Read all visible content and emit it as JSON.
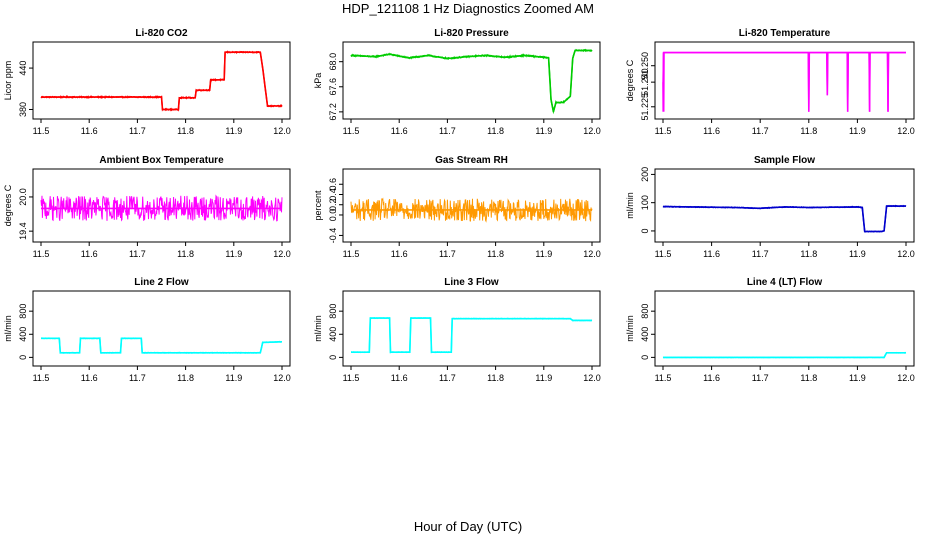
{
  "figure": {
    "title": "HDP_121108  1 Hz Diagnostics Zoomed AM",
    "xlabel": "Hour of Day (UTC)"
  },
  "chart_data": [
    {
      "type": "line",
      "title": "Li-820 CO2",
      "ylabel": "Licor ppm",
      "color": "#ff0000",
      "xlim": [
        11.5,
        12.0
      ],
      "ylim": [
        372,
        472
      ],
      "xticks": [
        "11.5",
        "11.6",
        "11.7",
        "11.8",
        "11.9",
        "12.0"
      ],
      "xtick_values": [
        11.5,
        11.6,
        11.7,
        11.8,
        11.9,
        12.0
      ],
      "yticks": [
        "380",
        "440"
      ],
      "ytick_values": [
        380,
        440
      ],
      "noise": 0.8,
      "x": [
        11.5,
        11.75,
        11.752,
        11.785,
        11.787,
        11.82,
        11.822,
        11.85,
        11.852,
        11.88,
        11.882,
        11.955,
        11.96,
        11.97,
        12.0
      ],
      "y": [
        398,
        398,
        380,
        380,
        397,
        397,
        408,
        408,
        423,
        423,
        463,
        463,
        440,
        385,
        385
      ]
    },
    {
      "type": "line",
      "title": "Li-820 Pressure",
      "ylabel": "kPa",
      "color": "#00cc00",
      "xlim": [
        11.5,
        12.0
      ],
      "ylim": [
        67.15,
        68.25
      ],
      "xticks": [
        "11.5",
        "11.6",
        "11.7",
        "11.8",
        "11.9",
        "12.0"
      ],
      "xtick_values": [
        11.5,
        11.6,
        11.7,
        11.8,
        11.9,
        12.0
      ],
      "yticks": [
        "67.2",
        "67.6",
        "68.0"
      ],
      "ytick_values": [
        67.2,
        67.6,
        68.0
      ],
      "noise": 0.01,
      "x": [
        11.5,
        11.55,
        11.58,
        11.62,
        11.66,
        11.7,
        11.74,
        11.78,
        11.82,
        11.86,
        11.9,
        11.91,
        11.915,
        11.92,
        11.925,
        11.94,
        11.945,
        11.955,
        11.96,
        11.965,
        12.0
      ],
      "y": [
        68.1,
        68.08,
        68.12,
        68.06,
        68.1,
        68.05,
        68.08,
        68.1,
        68.07,
        68.1,
        68.07,
        68.06,
        67.4,
        67.2,
        67.35,
        67.35,
        67.38,
        67.45,
        68.05,
        68.18,
        68.18
      ]
    },
    {
      "type": "line",
      "title": "Li-820 Temperature",
      "ylabel": "degrees C",
      "color": "#ff00ff",
      "xlim": [
        11.5,
        12.0
      ],
      "ylim": [
        51.22,
        51.262
      ],
      "xticks": [
        "11.5",
        "11.6",
        "11.7",
        "11.8",
        "11.9",
        "12.0"
      ],
      "xtick_values": [
        11.5,
        11.6,
        11.7,
        11.8,
        11.9,
        12.0
      ],
      "yticks": [
        "51.225",
        "51.240",
        "51.250"
      ],
      "ytick_values": [
        51.225,
        51.24,
        51.25
      ],
      "noise": 0,
      "x": [
        11.5,
        11.5005,
        11.501,
        11.5015,
        11.502,
        11.503,
        11.504,
        11.505,
        11.799,
        11.8,
        11.801,
        11.837,
        11.838,
        11.839,
        11.879,
        11.88,
        11.881,
        11.924,
        11.925,
        11.926,
        11.962,
        11.963,
        11.964,
        12.0
      ],
      "y": [
        51.24,
        51.222,
        51.258,
        51.222,
        51.258,
        51.258,
        51.258,
        51.258,
        51.258,
        51.222,
        51.258,
        51.258,
        51.232,
        51.258,
        51.258,
        51.222,
        51.258,
        51.258,
        51.222,
        51.258,
        51.258,
        51.222,
        51.258,
        51.258
      ]
    },
    {
      "type": "line",
      "title": "Ambient Box Temperature",
      "ylabel": "degrees C",
      "color": "#ff00ff",
      "xlim": [
        11.5,
        12.0
      ],
      "ylim": [
        19.28,
        20.42
      ],
      "xticks": [
        "11.5",
        "11.6",
        "11.7",
        "11.8",
        "11.9",
        "12.0"
      ],
      "xtick_values": [
        11.5,
        11.6,
        11.7,
        11.8,
        11.9,
        12.0
      ],
      "yticks": [
        "19.4",
        "20.0"
      ],
      "ytick_values": [
        19.4,
        20.0
      ],
      "noise": 0.22,
      "x": [
        11.5,
        12.0
      ],
      "y": [
        19.8,
        19.8
      ]
    },
    {
      "type": "line",
      "title": "Gas Stream RH",
      "ylabel": "percent",
      "color": "#ff9900",
      "xlim": [
        11.5,
        12.0
      ],
      "ylim": [
        -0.45,
        0.82
      ],
      "xticks": [
        "11.5",
        "11.6",
        "11.7",
        "11.8",
        "11.9",
        "12.0"
      ],
      "xtick_values": [
        11.5,
        11.6,
        11.7,
        11.8,
        11.9,
        12.0
      ],
      "yticks": [
        "-0.4",
        "0.0",
        "0.2",
        "0.4",
        "0.6"
      ],
      "ytick_values": [
        -0.4,
        0.0,
        0.2,
        0.4,
        0.6
      ],
      "noise": 0.22,
      "x": [
        11.5,
        12.0
      ],
      "y": [
        0.1,
        0.1
      ]
    },
    {
      "type": "line",
      "title": "Sample Flow",
      "ylabel": "ml/min",
      "color": "#0000cc",
      "xlim": [
        11.5,
        12.0
      ],
      "ylim": [
        -25,
        205
      ],
      "xticks": [
        "11.5",
        "11.6",
        "11.7",
        "11.8",
        "11.9",
        "12.0"
      ],
      "xtick_values": [
        11.5,
        11.6,
        11.7,
        11.8,
        11.9,
        12.0
      ],
      "yticks": [
        "0",
        "100",
        "200"
      ],
      "ytick_values": [
        0,
        100,
        200
      ],
      "noise": 1.2,
      "x": [
        11.5,
        11.6,
        11.65,
        11.7,
        11.75,
        11.8,
        11.85,
        11.9,
        11.91,
        11.915,
        11.95,
        11.955,
        11.96,
        12.0
      ],
      "y": [
        86,
        84,
        83,
        80,
        85,
        83,
        84,
        85,
        83,
        -2,
        -2,
        0,
        88,
        88
      ]
    },
    {
      "type": "line",
      "title": "Line 2 Flow",
      "ylabel": "ml/min",
      "color": "#00ffff",
      "xlim": [
        11.5,
        12.0
      ],
      "ylim": [
        -80,
        1080
      ],
      "xticks": [
        "11.5",
        "11.6",
        "11.7",
        "11.8",
        "11.9",
        "12.0"
      ],
      "xtick_values": [
        11.5,
        11.6,
        11.7,
        11.8,
        11.9,
        12.0
      ],
      "yticks": [
        "0",
        "400",
        "800"
      ],
      "ytick_values": [
        0,
        400,
        800
      ],
      "noise": 4,
      "x": [
        11.5,
        11.538,
        11.54,
        11.58,
        11.582,
        11.622,
        11.624,
        11.665,
        11.667,
        11.708,
        11.71,
        11.955,
        11.96,
        12.0
      ],
      "y": [
        330,
        330,
        80,
        80,
        330,
        330,
        80,
        80,
        330,
        330,
        80,
        80,
        260,
        270
      ]
    },
    {
      "type": "line",
      "title": "Line 3 Flow",
      "ylabel": "ml/min",
      "color": "#00ffff",
      "xlim": [
        11.5,
        12.0
      ],
      "ylim": [
        -80,
        1080
      ],
      "xticks": [
        "11.5",
        "11.6",
        "11.7",
        "11.8",
        "11.9",
        "12.0"
      ],
      "xtick_values": [
        11.5,
        11.6,
        11.7,
        11.8,
        11.9,
        12.0
      ],
      "yticks": [
        "0",
        "400",
        "800"
      ],
      "ytick_values": [
        0,
        400,
        800
      ],
      "noise": 4,
      "x": [
        11.5,
        11.538,
        11.54,
        11.58,
        11.582,
        11.622,
        11.624,
        11.665,
        11.667,
        11.708,
        11.71,
        11.955,
        11.96,
        12.0
      ],
      "y": [
        90,
        90,
        680,
        680,
        90,
        90,
        680,
        680,
        90,
        90,
        670,
        670,
        640,
        640
      ]
    },
    {
      "type": "line",
      "title": "Line 4 (LT) Flow",
      "ylabel": "ml/min",
      "color": "#00ffff",
      "xlim": [
        11.5,
        12.0
      ],
      "ylim": [
        -80,
        1080
      ],
      "xticks": [
        "11.5",
        "11.6",
        "11.7",
        "11.8",
        "11.9",
        "12.0"
      ],
      "xtick_values": [
        11.5,
        11.6,
        11.7,
        11.8,
        11.9,
        12.0
      ],
      "yticks": [
        "0",
        "400",
        "800"
      ],
      "ytick_values": [
        0,
        400,
        800
      ],
      "noise": 2,
      "x": [
        11.5,
        11.955,
        11.96,
        12.0
      ],
      "y": [
        0,
        0,
        80,
        80
      ]
    }
  ]
}
